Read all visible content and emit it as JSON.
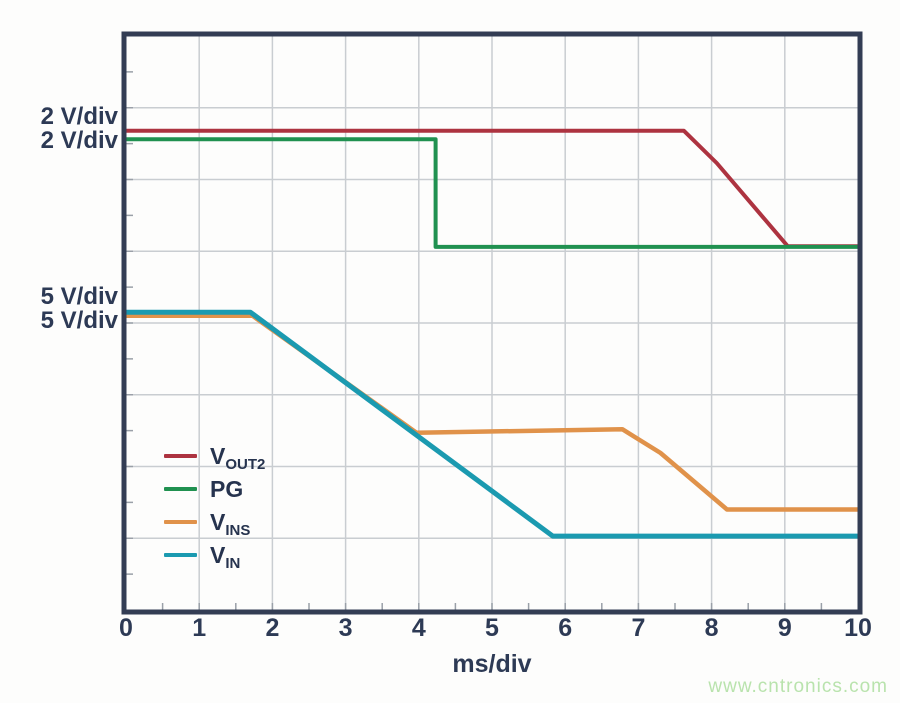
{
  "colors": {
    "frame": "#333d54",
    "grid": "#c9cdd1",
    "minor_tick": "#9aa0a8",
    "text": "#2d3a55",
    "vout2": "#ad3340",
    "pg": "#209150",
    "vins": "#e0924a",
    "vin": "#1b9ab0",
    "watermark": "#b9e3ad"
  },
  "left_labels": [
    {
      "text": "2 V/div"
    },
    {
      "text": "2 V/div"
    },
    {
      "text": "5 V/div"
    },
    {
      "text": "5 V/div"
    }
  ],
  "legend": [
    {
      "main": "V",
      "sub": "OUT2",
      "color": "#ad3340"
    },
    {
      "main": "PG",
      "sub": "",
      "color": "#209150"
    },
    {
      "main": "V",
      "sub": "INS",
      "color": "#e0924a"
    },
    {
      "main": "V",
      "sub": "IN",
      "color": "#1b9ab0"
    }
  ],
  "watermark": "www.cntronics.com",
  "chart_data": {
    "type": "line",
    "title": "",
    "xlabel": "ms/div",
    "ylabel": "",
    "x_range": [
      0,
      10
    ],
    "x_ticks": [
      "0",
      "1",
      "2",
      "3",
      "4",
      "5",
      "6",
      "7",
      "8",
      "9",
      "10"
    ],
    "x_divisions": 10,
    "y_divisions": 8,
    "grid": true,
    "legend_position": "inside-lower-left",
    "y_units_note": "y values are grid divisions measured from the top border; V_OUT2 and PG are on a 2 V/div scale, V_INS and V_IN on a 5 V/div scale",
    "series": [
      {
        "name": "VOUT2",
        "scale": "2 V/div",
        "color": "#ad3340",
        "width": 4,
        "points": [
          [
            0,
            1.32
          ],
          [
            7.62,
            1.32
          ],
          [
            8.07,
            1.77
          ],
          [
            9.04,
            2.93
          ],
          [
            10,
            2.93
          ]
        ]
      },
      {
        "name": "PG",
        "scale": "2 V/div",
        "color": "#209150",
        "width": 4,
        "points": [
          [
            0,
            1.44
          ],
          [
            4.23,
            1.44
          ],
          [
            4.23,
            2.94
          ],
          [
            10,
            2.94
          ]
        ]
      },
      {
        "name": "VINS",
        "scale": "5 V/div",
        "color": "#e0924a",
        "width": 4.5,
        "points": [
          [
            0,
            3.9
          ],
          [
            1.73,
            3.9
          ],
          [
            3.97,
            5.53
          ],
          [
            6.78,
            5.48
          ],
          [
            7.3,
            5.81
          ],
          [
            8.21,
            6.6
          ],
          [
            10,
            6.6
          ]
        ]
      },
      {
        "name": "VIN",
        "scale": "5 V/div",
        "color": "#1b9ab0",
        "width": 5,
        "points": [
          [
            0,
            3.85
          ],
          [
            1.7,
            3.85
          ],
          [
            5.83,
            6.97
          ],
          [
            10,
            6.97
          ]
        ]
      }
    ]
  }
}
